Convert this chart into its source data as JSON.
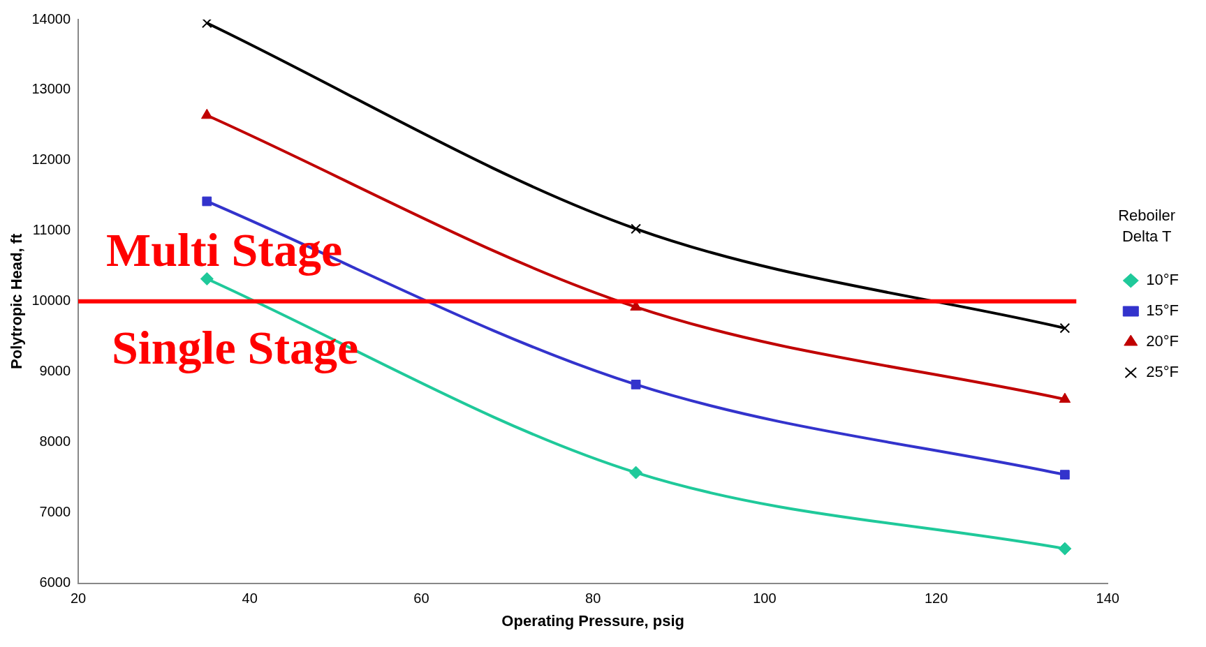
{
  "chart_data": {
    "type": "line",
    "xlabel": "Operating Pressure, psig",
    "ylabel": "Polytropic Head, ft",
    "legend_title": "Reboiler Delta T",
    "legend": "right",
    "grid": false,
    "x": [
      35,
      85,
      135
    ],
    "xlim": [
      20,
      140
    ],
    "xticks": [
      20,
      40,
      60,
      80,
      100,
      120,
      140
    ],
    "ylim": [
      6000,
      14000
    ],
    "yticks": [
      6000,
      7000,
      8000,
      9000,
      10000,
      11000,
      12000,
      13000,
      14000
    ],
    "series": [
      {
        "name": "10°F",
        "color": "#1fc99a",
        "marker": "diamond",
        "values": [
          10320,
          7570,
          6490
        ]
      },
      {
        "name": "15°F",
        "color": "#3333cc",
        "marker": "square",
        "values": [
          11420,
          8820,
          7540
        ]
      },
      {
        "name": "20°F",
        "color": "#c00000",
        "marker": "triangle",
        "values": [
          12640,
          9920,
          8610
        ]
      },
      {
        "name": "25°F",
        "color": "#000000",
        "marker": "cross",
        "values": [
          13950,
          11030,
          9620
        ]
      }
    ],
    "ref_lines": [
      {
        "axis": "y",
        "value": 10000,
        "color": "#ff0000"
      }
    ],
    "annotations": [
      "Multi Stage",
      "Single Stage"
    ]
  }
}
